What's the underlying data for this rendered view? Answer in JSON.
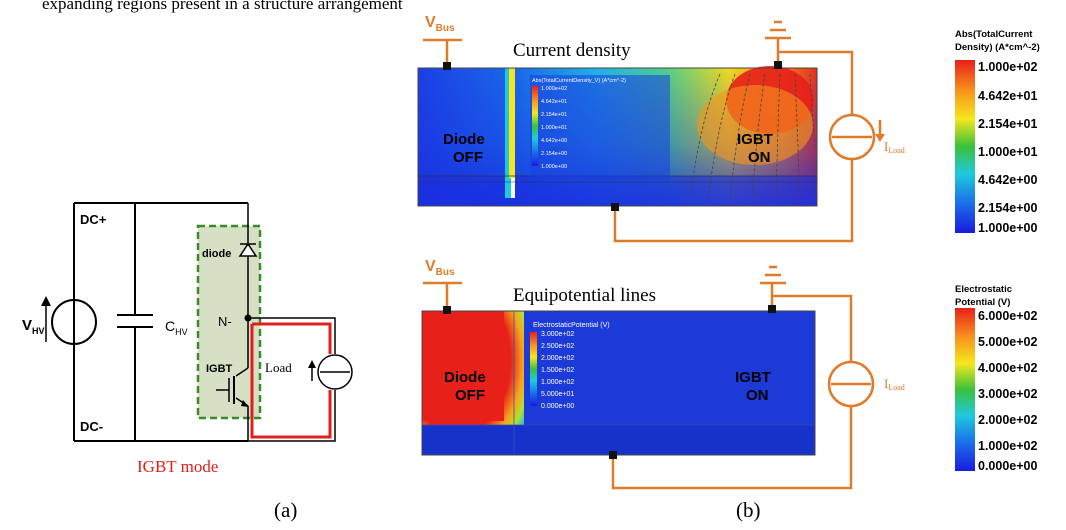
{
  "header_text": "expanding regions present in a structure arrangement",
  "panel_a": {
    "dc_plus": "DC+",
    "dc_minus": "DC-",
    "vhv_main": "V",
    "vhv_sub": "HV",
    "chv_main": "C",
    "chv_sub": "HV",
    "diode_label": "diode",
    "n_label": "N-",
    "igbt_label": "IGBT",
    "load_label": "Load",
    "mode_label": "IGBT mode",
    "caption": "(a)"
  },
  "panel_b": {
    "caption": "(b)",
    "vbus_main": "V",
    "vbus_sub": "Bus",
    "iload_main": "I",
    "iload_sub": "Load",
    "top": {
      "title": "Current density",
      "diode_text": "Diode",
      "diode_state": "OFF",
      "igbt_text": "IGBT",
      "igbt_state": "ON",
      "inset_title": "Abs(TotalCurrentDensity_V) (A*cm^-2)",
      "inset_values": [
        "1.000e+02",
        "4.642e+01",
        "2.154e+01",
        "1.000e+01",
        "4.642e+00",
        "2.154e+00",
        "1.000e+00"
      ]
    },
    "bottom": {
      "title": "Equipotential lines",
      "diode_text": "Diode",
      "diode_state": "OFF",
      "igbt_text": "IGBT",
      "igbt_state": "ON",
      "inset_title": "ElectrostaticPotential (V)",
      "inset_values": [
        "3.000e+02",
        "2.500e+02",
        "2.000e+02",
        "1.500e+02",
        "1.000e+02",
        "5.000e+01",
        "0.000e+00"
      ]
    }
  },
  "legend_current": {
    "title_line1": "Abs(TotalCurrent",
    "title_line2": "Density) (A*cm^-2)",
    "values": [
      "1.000e+02",
      "4.642e+01",
      "2.154e+01",
      "1.000e+01",
      "4.642e+00",
      "2.154e+00",
      "1.000e+00"
    ]
  },
  "legend_potential": {
    "title_line1": "Electrostatic",
    "title_line2": "Potential (V)",
    "values": [
      "6.000e+02",
      "5.000e+02",
      "4.000e+02",
      "3.000e+02",
      "2.000e+02",
      "1.000e+02",
      "0.000e+00"
    ]
  },
  "colors": {
    "circuit": "#e07b2a",
    "highlight": "#e0201c",
    "igbt_box": "#d6e0c4",
    "igbt_box_border": "#3a8a2a"
  }
}
